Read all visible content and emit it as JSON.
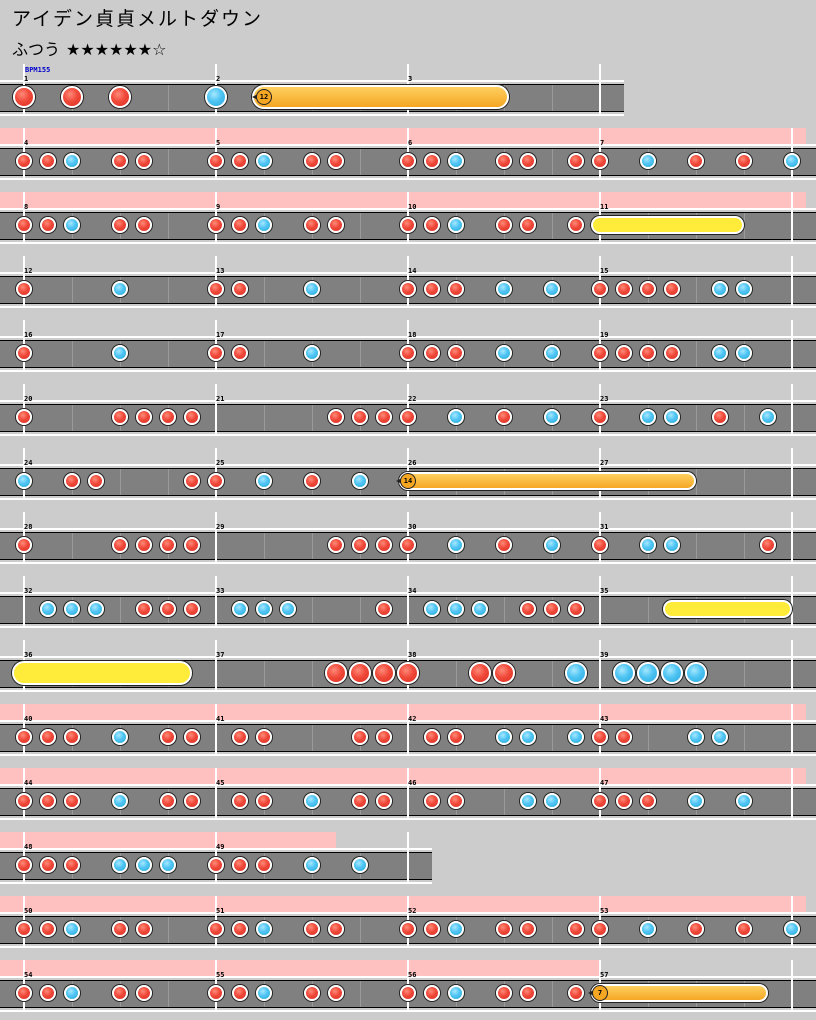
{
  "header": {
    "title": "アイデン貞貞メルトダウン",
    "difficulty": "ふつう",
    "stars": "★★★★★★☆",
    "bpm": "BPM155"
  },
  "chart_data": {
    "type": "taiko-chart",
    "measures_per_row": 4,
    "beats_per_measure": 4,
    "rows": [
      {
        "first_measure": 1,
        "measures": 3,
        "gogo": [],
        "don": [
          0,
          1,
          2
        ],
        "ka": [
          4
        ],
        "big": true,
        "rolls": [
          {
            "type": "balloon",
            "count": "12",
            "start": 5,
            "end": 10.1
          }
        ]
      },
      {
        "first_measure": 4,
        "measures": 4,
        "gogo": [
          [
            0,
            16.3
          ]
        ],
        "don": [
          0,
          0.5,
          2,
          2.5,
          4,
          4.5,
          6,
          6.5,
          8,
          8.5,
          10,
          10.5,
          11.5,
          12,
          14,
          15
        ],
        "ka": [
          1,
          5,
          9,
          13,
          16
        ],
        "rolls": []
      },
      {
        "first_measure": 8,
        "measures": 4,
        "gogo": [
          [
            0,
            16.3
          ]
        ],
        "don": [
          0,
          0.5,
          2,
          2.5,
          4,
          4.5,
          6,
          6.5,
          8,
          8.5,
          10,
          10.5,
          11.5
        ],
        "ka": [
          1,
          5,
          9
        ],
        "rolls": [
          {
            "type": "yellow",
            "start": 12,
            "end": 15
          }
        ]
      },
      {
        "first_measure": 12,
        "measures": 4,
        "gogo": [],
        "don": [
          0,
          4,
          4.5,
          8,
          8.5,
          9,
          12,
          12.5,
          13,
          13.5
        ],
        "ka": [
          2,
          6,
          10,
          11,
          14.5,
          15
        ],
        "rolls": []
      },
      {
        "first_measure": 16,
        "measures": 4,
        "gogo": [],
        "don": [
          0,
          4,
          4.5,
          8,
          8.5,
          9,
          12,
          12.5,
          13,
          13.5
        ],
        "ka": [
          2,
          6,
          10,
          11,
          14.5,
          15
        ],
        "rolls": []
      },
      {
        "first_measure": 20,
        "measures": 4,
        "gogo": [],
        "don": [
          0,
          2,
          2.5,
          3,
          3.5,
          6.5,
          7,
          7.5,
          8,
          10,
          12,
          14.5
        ],
        "ka": [
          9,
          11,
          13,
          13.5,
          15.5
        ],
        "rolls": []
      },
      {
        "first_measure": 24,
        "measures": 4,
        "gogo": [],
        "don": [
          1,
          1.5,
          3.5,
          4,
          6
        ],
        "ka": [
          0,
          5,
          7
        ],
        "rolls": [
          {
            "type": "balloon",
            "count": "14",
            "start": 8,
            "end": 14
          }
        ]
      },
      {
        "first_measure": 28,
        "measures": 4,
        "gogo": [],
        "don": [
          0,
          2,
          2.5,
          3,
          3.5,
          6.5,
          7,
          7.5,
          8,
          10,
          12,
          15.5
        ],
        "ka": [
          9,
          11,
          13,
          13.5
        ],
        "rolls": []
      },
      {
        "first_measure": 32,
        "measures": 4,
        "gogo": [],
        "don": [
          2.5,
          3,
          3.5,
          7.5,
          10.5,
          11,
          11.5
        ],
        "ka": [
          0.5,
          1,
          1.5,
          4.5,
          5,
          5.5,
          8.5,
          9,
          9.5
        ],
        "rolls": [
          {
            "type": "yellow",
            "start": 13.5,
            "end": 16.3
          }
        ]
      },
      {
        "first_measure": 36,
        "measures": 4,
        "gogo": [],
        "don": [
          6.5,
          7,
          7.5,
          8,
          9.5,
          10
        ],
        "ka": [
          11.5,
          12.5,
          13,
          13.5,
          14
        ],
        "big": true,
        "rolls": [
          {
            "type": "yellow",
            "start": 0,
            "end": 3.5
          }
        ]
      },
      {
        "first_measure": 40,
        "measures": 4,
        "gogo": [
          [
            0,
            16.3
          ]
        ],
        "don": [
          0,
          0.5,
          1,
          3,
          3.5,
          4.5,
          5,
          7,
          7.5,
          8.5,
          9,
          12,
          12.5
        ],
        "ka": [
          2,
          10,
          10.5,
          11.5,
          14,
          14.5
        ],
        "rolls": []
      },
      {
        "first_measure": 44,
        "measures": 4,
        "gogo": [
          [
            0,
            16.3
          ]
        ],
        "don": [
          0,
          0.5,
          1,
          3,
          3.5,
          4.5,
          5,
          7,
          7.5,
          8.5,
          9,
          12,
          12.5,
          13
        ],
        "ka": [
          2,
          6,
          10.5,
          11,
          14,
          15
        ],
        "rolls": []
      },
      {
        "first_measure": 48,
        "measures": 2,
        "gogo": [
          [
            0,
            6.5
          ]
        ],
        "don": [
          0,
          0.5,
          1,
          4,
          4.5,
          5
        ],
        "ka": [
          2,
          2.5,
          3,
          6,
          7
        ],
        "rolls": []
      },
      {
        "first_measure": 50,
        "measures": 4,
        "gogo": [
          [
            0,
            16.3
          ]
        ],
        "don": [
          0,
          0.5,
          2,
          2.5,
          4,
          4.5,
          6,
          6.5,
          8,
          8.5,
          10,
          10.5,
          11.5,
          12,
          14,
          15
        ],
        "ka": [
          1,
          5,
          9,
          13,
          16
        ],
        "rolls": []
      },
      {
        "first_measure": 54,
        "measures": 4,
        "gogo": [
          [
            0,
            12
          ]
        ],
        "don": [
          0,
          0.5,
          2,
          2.5,
          4,
          4.5,
          6,
          6.5,
          8,
          8.5,
          10,
          10.5,
          11.5
        ],
        "ka": [
          1,
          5,
          9
        ],
        "rolls": [
          {
            "type": "balloon",
            "count": "7",
            "start": 12,
            "end": 15.5
          }
        ]
      }
    ]
  }
}
